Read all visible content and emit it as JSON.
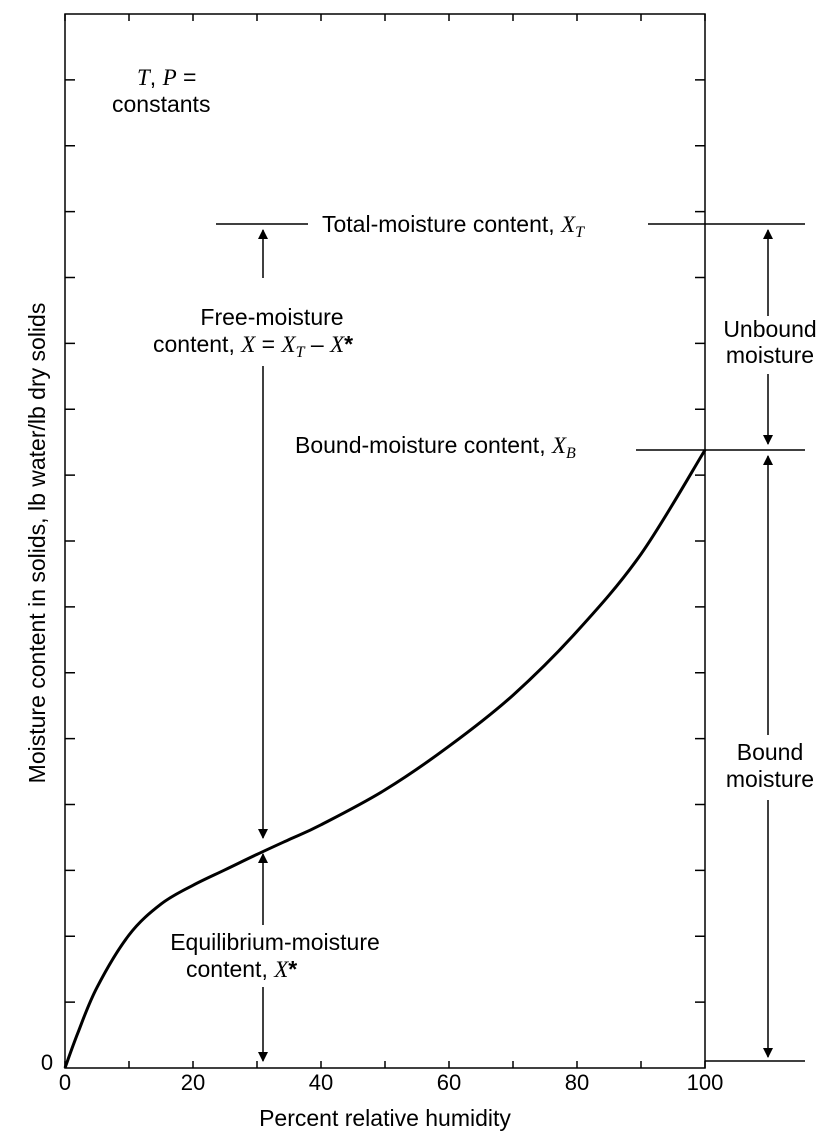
{
  "chart_data": {
    "type": "line",
    "title": "",
    "xlabel": "Percent relative humidity",
    "ylabel": "Moisture content in solids, lb water/lb dry solids",
    "xlim": [
      0,
      100
    ],
    "x_ticks": [
      "0",
      "20",
      "40",
      "60",
      "80",
      "100"
    ],
    "y_tick_labels": [
      "0"
    ],
    "grid": false,
    "series": [
      {
        "x": [
          0,
          2,
          5,
          10,
          15,
          20,
          25,
          30,
          35,
          40,
          50,
          60,
          70,
          80,
          90,
          100
        ],
        "y": [
          0,
          0.052,
          0.12,
          0.198,
          0.244,
          0.272,
          0.295,
          0.318,
          0.34,
          0.362,
          0.414,
          0.479,
          0.555,
          0.65,
          0.765,
          0.92
        ]
      }
    ],
    "annotations": {
      "tp_line1_T": "T",
      "tp_line1_sep": ", ",
      "tp_line1_P": "P",
      "tp_line1_eq": " =",
      "tp_line2": "constants",
      "total_moisture_text": "Total-moisture content, ",
      "total_moisture_sym": "X",
      "total_moisture_sub": "T",
      "free_line1": "Free-moisture",
      "free_line2_text": "content, ",
      "free_line2_X": "X",
      "free_line2_eq": " = ",
      "free_line2_XT": "X",
      "free_line2_XT_sub": "T",
      "free_line2_minus": " – ",
      "free_line2_Xstar": "X",
      "free_line2_star": "*",
      "unbound_line1": "Unbound",
      "unbound_line2": "moisture",
      "bound_content_text": "Bound-moisture content, ",
      "bound_content_sym": "X",
      "bound_content_sub": "B",
      "bound_line1": "Bound",
      "bound_line2": "moisture",
      "eq_line1": "Equilibrium-moisture",
      "eq_line2_text": "content, ",
      "eq_line2_X": "X",
      "eq_line2_star": "*"
    }
  }
}
